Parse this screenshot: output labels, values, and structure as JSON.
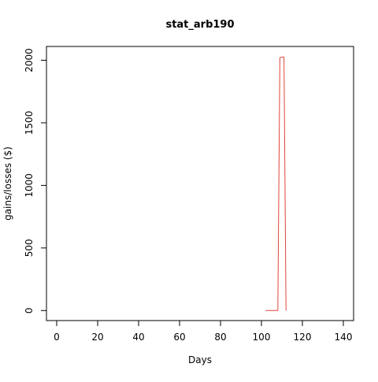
{
  "chart_data": {
    "type": "line",
    "title": "stat_arb190",
    "xlabel": "Days",
    "ylabel": "gains/losses ($)",
    "xlim": [
      -5,
      145
    ],
    "ylim": [
      -80,
      2110
    ],
    "x_ticks": [
      0,
      20,
      40,
      60,
      80,
      100,
      120,
      140
    ],
    "y_ticks": [
      0,
      500,
      1000,
      1500,
      2000
    ],
    "grid": false,
    "series": [
      {
        "color": "#e0443a",
        "points": [
          [
            102,
            0
          ],
          [
            103,
            0
          ],
          [
            104,
            0
          ],
          [
            105,
            0
          ],
          [
            106,
            0
          ],
          [
            107,
            0
          ],
          [
            108,
            0
          ],
          [
            109,
            2020
          ],
          [
            110,
            2025
          ],
          [
            111,
            2025
          ],
          [
            112,
            0
          ]
        ]
      }
    ]
  }
}
